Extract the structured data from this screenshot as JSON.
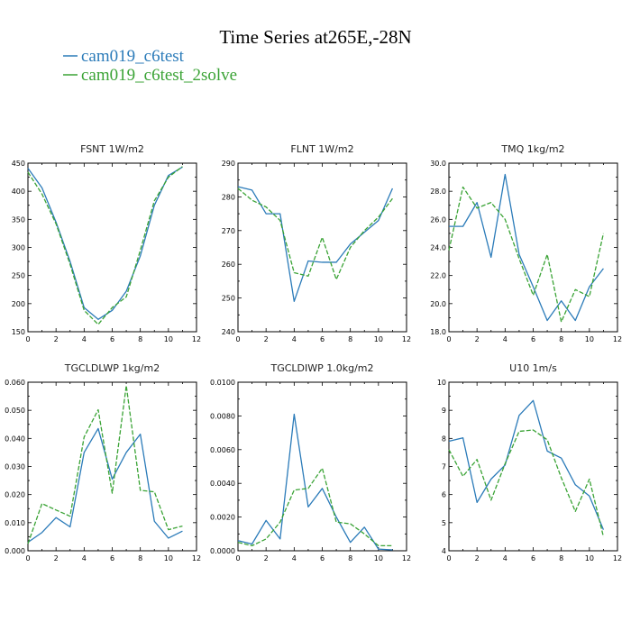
{
  "figure": {
    "title": "Time Series at265E,-28N",
    "legend": [
      {
        "label": "cam019_c6test",
        "color": "#2b7bb9"
      },
      {
        "label": "cam019_c6test_2solve",
        "color": "#3aa335"
      }
    ]
  },
  "chart_data": [
    {
      "type": "line",
      "title": "FSNT   1W/m2",
      "x": [
        0,
        1,
        2,
        3,
        4,
        5,
        6,
        7,
        8,
        9,
        10,
        11
      ],
      "xlim": [
        0,
        12
      ],
      "xticks": [
        0,
        2,
        4,
        6,
        8,
        10,
        12
      ],
      "ylim": [
        150,
        450
      ],
      "yticks": [
        150,
        200,
        250,
        300,
        350,
        400,
        450
      ],
      "ytick_labels": [
        "150",
        "200",
        "250",
        "300",
        "350",
        "400",
        "450"
      ],
      "series": [
        {
          "name": "cam019_c6test",
          "color": "#2b7bb9",
          "dash": "solid",
          "values": [
            441,
            406,
            345,
            275,
            193,
            172,
            188,
            222,
            285,
            375,
            428,
            443
          ]
        },
        {
          "name": "cam019_c6test_2solve",
          "color": "#3aa335",
          "dash": "dashed",
          "values": [
            434,
            395,
            342,
            270,
            188,
            163,
            193,
            212,
            295,
            383,
            425,
            444
          ]
        }
      ]
    },
    {
      "type": "line",
      "title": "FLNT   1W/m2",
      "x": [
        0,
        1,
        2,
        3,
        4,
        5,
        6,
        7,
        8,
        9,
        10,
        11
      ],
      "xlim": [
        0,
        12
      ],
      "xticks": [
        0,
        2,
        4,
        6,
        8,
        10,
        12
      ],
      "ylim": [
        240,
        290
      ],
      "yticks": [
        240,
        250,
        260,
        270,
        280,
        290
      ],
      "ytick_labels": [
        "240",
        "250",
        "260",
        "270",
        "280",
        "290"
      ],
      "series": [
        {
          "name": "cam019_c6test",
          "color": "#2b7bb9",
          "dash": "solid",
          "values": [
            283,
            282,
            275,
            275,
            249,
            261,
            260.6,
            260.6,
            266,
            269.5,
            273,
            282.5
          ]
        },
        {
          "name": "cam019_c6test_2solve",
          "color": "#3aa335",
          "dash": "dashed",
          "values": [
            282.5,
            279,
            277,
            273,
            257.5,
            256.5,
            268,
            255.5,
            265,
            270,
            274,
            279.5
          ]
        }
      ]
    },
    {
      "type": "line",
      "title": "TMQ   1kg/m2",
      "x": [
        0,
        1,
        2,
        3,
        4,
        5,
        6,
        7,
        8,
        9,
        10,
        11
      ],
      "xlim": [
        0,
        12
      ],
      "xticks": [
        0,
        2,
        4,
        6,
        8,
        10,
        12
      ],
      "ylim": [
        18,
        30
      ],
      "yticks": [
        18,
        20,
        22,
        24,
        26,
        28,
        30
      ],
      "ytick_labels": [
        "18.0",
        "20.0",
        "22.0",
        "24.0",
        "26.0",
        "28.0",
        "30.0"
      ],
      "series": [
        {
          "name": "cam019_c6test",
          "color": "#2b7bb9",
          "dash": "solid",
          "values": [
            25.5,
            25.5,
            27.2,
            23.3,
            29.2,
            23.5,
            21.2,
            18.8,
            20.2,
            18.8,
            21.2,
            22.5
          ]
        },
        {
          "name": "cam019_c6test_2solve",
          "color": "#3aa335",
          "dash": "dashed",
          "values": [
            23.8,
            28.3,
            26.8,
            27.2,
            26,
            23.2,
            20.6,
            23.5,
            18.7,
            21,
            20.5,
            25
          ]
        }
      ]
    },
    {
      "type": "line",
      "title": "TGCLDLWP   1kg/m2",
      "x": [
        0,
        1,
        2,
        3,
        4,
        5,
        6,
        7,
        8,
        9,
        10,
        11
      ],
      "xlim": [
        0,
        12
      ],
      "xticks": [
        0,
        2,
        4,
        6,
        8,
        10,
        12
      ],
      "ylim": [
        0,
        0.06
      ],
      "yticks": [
        0,
        0.01,
        0.02,
        0.03,
        0.04,
        0.05,
        0.06
      ],
      "ytick_labels": [
        "0.000",
        "0.010",
        "0.020",
        "0.030",
        "0.040",
        "0.050",
        "0.060"
      ],
      "series": [
        {
          "name": "cam019_c6test",
          "color": "#2b7bb9",
          "dash": "solid",
          "values": [
            0.003,
            0.0065,
            0.0118,
            0.0085,
            0.035,
            0.0435,
            0.0255,
            0.035,
            0.0415,
            0.0105,
            0.0045,
            0.007
          ]
        },
        {
          "name": "cam019_c6test_2solve",
          "color": "#3aa335",
          "dash": "dashed",
          "values": [
            0.0025,
            0.0168,
            0.0145,
            0.0123,
            0.0405,
            0.0502,
            0.0205,
            0.0588,
            0.0215,
            0.021,
            0.0075,
            0.0088
          ]
        }
      ]
    },
    {
      "type": "line",
      "title": "TGCLDIWP   1.0kg/m2",
      "x": [
        0,
        1,
        2,
        3,
        4,
        5,
        6,
        7,
        8,
        9,
        10,
        11
      ],
      "xlim": [
        0,
        12
      ],
      "xticks": [
        0,
        2,
        4,
        6,
        8,
        10,
        12
      ],
      "ylim": [
        0,
        0.01
      ],
      "yticks": [
        0,
        0.002,
        0.004,
        0.006,
        0.008,
        0.01
      ],
      "ytick_labels": [
        "0.0000",
        "0.0020",
        "0.0040",
        "0.0060",
        "0.0080",
        "0.0100"
      ],
      "series": [
        {
          "name": "cam019_c6test",
          "color": "#2b7bb9",
          "dash": "solid",
          "values": [
            0.0006,
            0.0004,
            0.0018,
            0.0007,
            0.0081,
            0.0026,
            0.0037,
            0.002,
            0.0005,
            0.0014,
            0.0001,
            5e-05
          ]
        },
        {
          "name": "cam019_c6test_2solve",
          "color": "#3aa335",
          "dash": "dashed",
          "values": [
            0.0005,
            0.0003,
            0.0007,
            0.0017,
            0.0036,
            0.0037,
            0.0049,
            0.0017,
            0.0016,
            0.001,
            0.0003,
            0.0003
          ]
        }
      ]
    },
    {
      "type": "line",
      "title": "U10   1m/s",
      "x": [
        0,
        1,
        2,
        3,
        4,
        5,
        6,
        7,
        8,
        9,
        10,
        11
      ],
      "xlim": [
        0,
        12
      ],
      "xticks": [
        0,
        2,
        4,
        6,
        8,
        10,
        12
      ],
      "ylim": [
        4,
        10
      ],
      "yticks": [
        4,
        5,
        6,
        7,
        8,
        9,
        10
      ],
      "ytick_labels": [
        "4",
        "5",
        "6",
        "7",
        "8",
        "9",
        "10"
      ],
      "series": [
        {
          "name": "cam019_c6test",
          "color": "#2b7bb9",
          "dash": "solid",
          "values": [
            7.9,
            8.02,
            5.72,
            6.55,
            7.05,
            8.82,
            9.35,
            7.55,
            7.3,
            6.35,
            5.95,
            4.75
          ]
        },
        {
          "name": "cam019_c6test_2solve",
          "color": "#3aa335",
          "dash": "dashed",
          "values": [
            7.6,
            6.65,
            7.25,
            5.8,
            7.1,
            8.25,
            8.3,
            7.95,
            6.6,
            5.4,
            6.55,
            4.5
          ]
        }
      ]
    }
  ]
}
